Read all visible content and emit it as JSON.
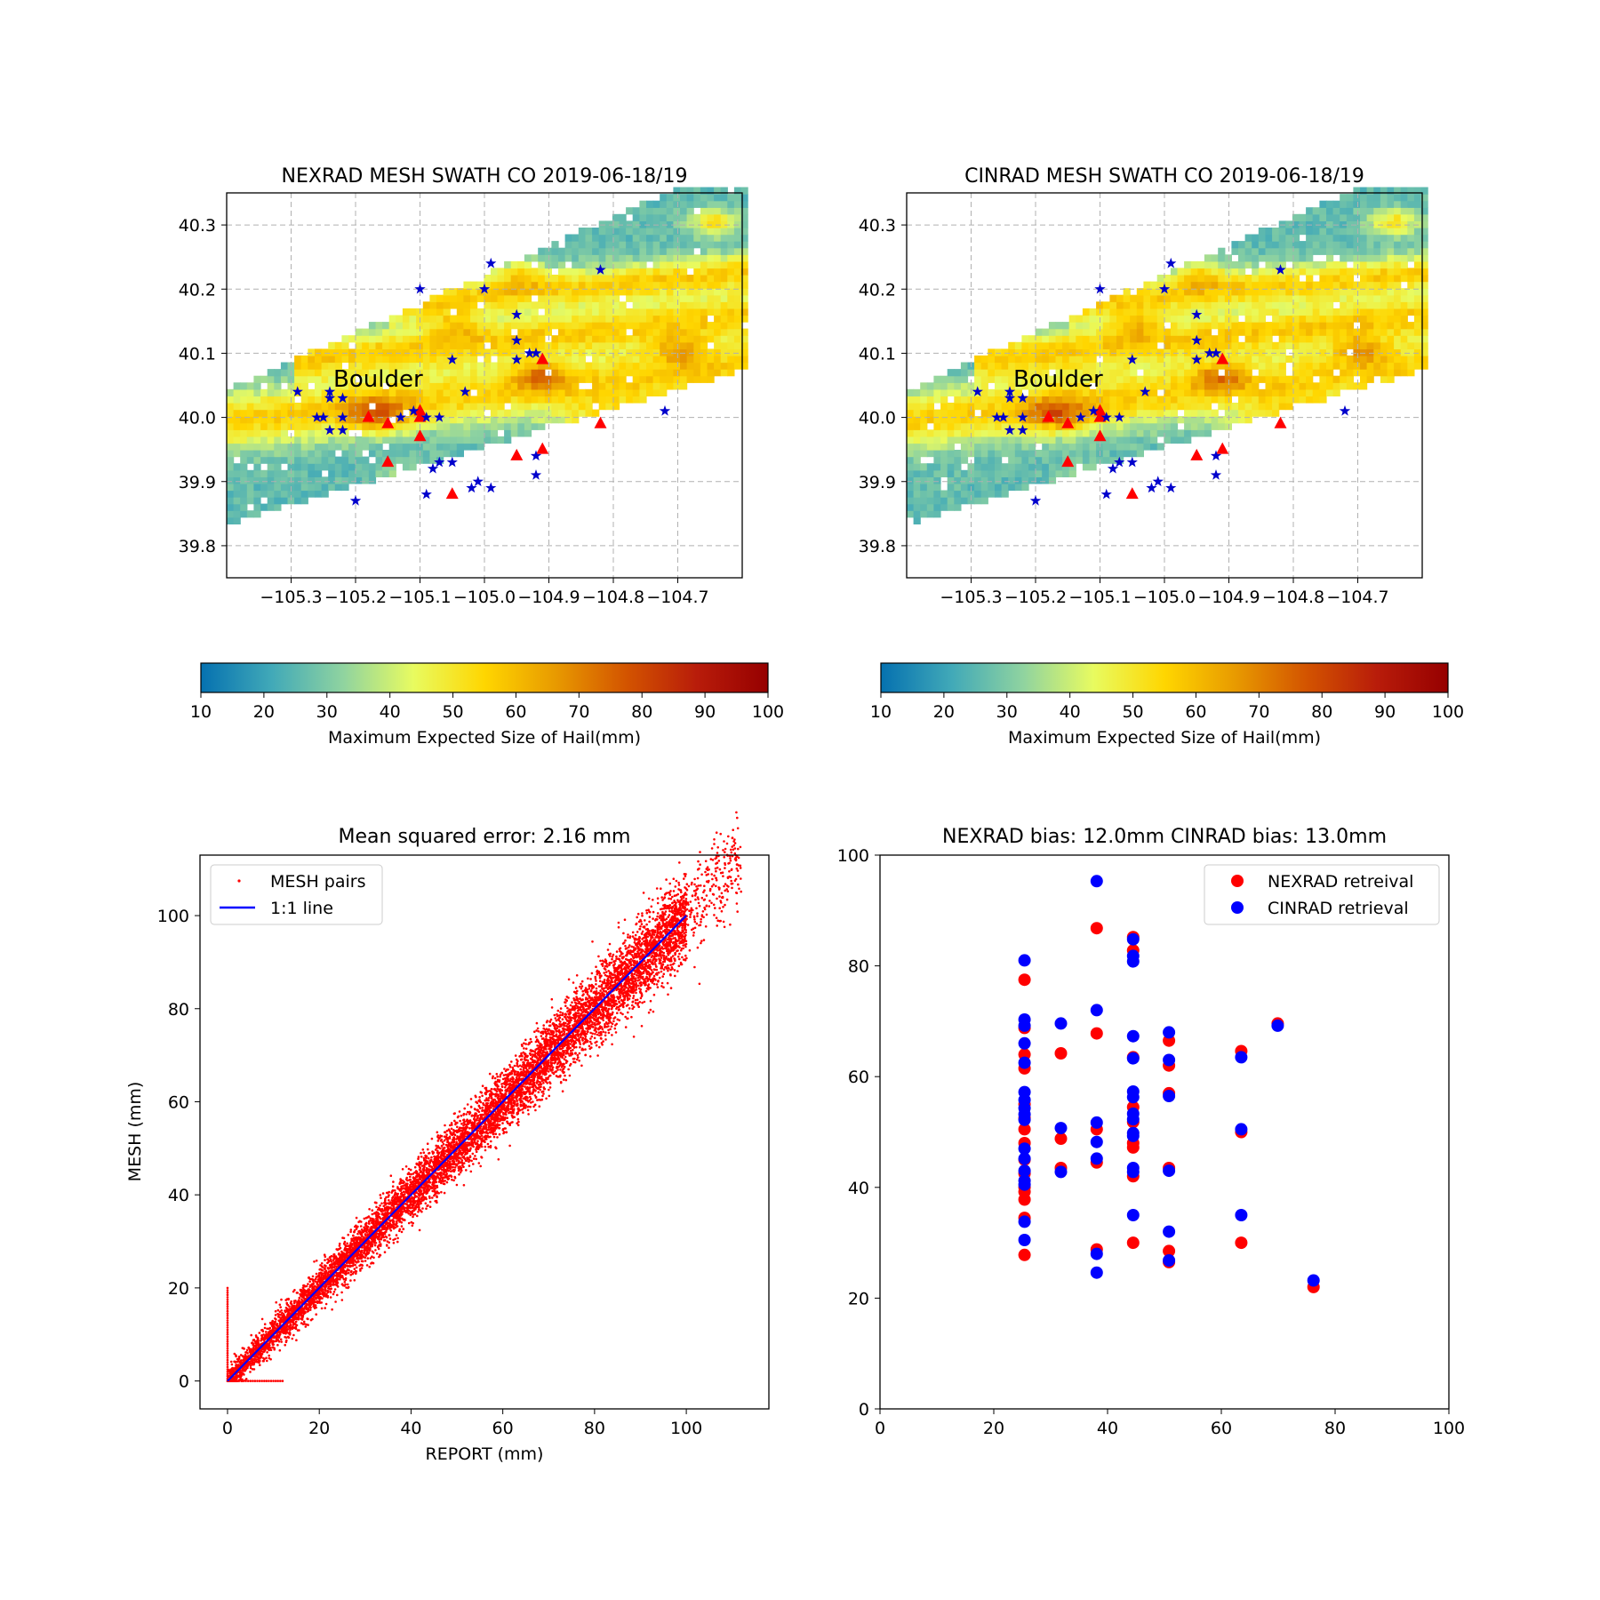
{
  "colors": {
    "report_triangle": "#ff0000",
    "report_star": "#0000cc",
    "nexrad_point": "#ff0000",
    "cinrad_point": "#0000ff",
    "mesh_pairs": "#ff0000",
    "one_to_one_line": "#0000ff",
    "colormap": [
      "#0571b0",
      "#41a9b8",
      "#8fd3a0",
      "#e8fb60",
      "#ffd600",
      "#e89a00",
      "#d35400",
      "#b81c0a",
      "#960000"
    ]
  },
  "chart_data": [
    {
      "id": "nexrad_map",
      "type": "heatmap",
      "title": "NEXRAD MESH SWATH CO 2019-06-18/19",
      "xlabel": "",
      "ylabel": "",
      "xlim": [
        -105.4,
        -104.6
      ],
      "ylim": [
        39.75,
        40.35
      ],
      "xticks": [
        -105.3,
        -105.2,
        -105.1,
        -105.0,
        -104.9,
        -104.8,
        -104.7
      ],
      "xtick_labels": [
        "−105.3",
        "−105.2",
        "−105.1",
        "−105.0",
        "−104.9",
        "−104.8",
        "−104.7"
      ],
      "yticks": [
        39.8,
        39.9,
        40.0,
        40.1,
        40.2,
        40.3
      ],
      "ytick_labels": [
        "39.8",
        "39.9",
        "40.0",
        "40.1",
        "40.2",
        "40.3"
      ],
      "grid": true,
      "annotation": {
        "text": "Boulder",
        "lon": -105.23,
        "lat": 40.06
      },
      "colorbar": {
        "label": "Maximum Expected Size of Hail(mm)",
        "min": 10,
        "max": 100,
        "ticks": [
          10,
          20,
          30,
          40,
          50,
          60,
          70,
          80,
          90,
          100
        ]
      },
      "stars": [
        [
          -105.29,
          40.04
        ],
        [
          -105.24,
          40.04
        ],
        [
          -105.24,
          40.03
        ],
        [
          -105.22,
          40.03
        ],
        [
          -105.22,
          40.0
        ],
        [
          -105.26,
          40.0
        ],
        [
          -105.25,
          40.0
        ],
        [
          -105.24,
          39.98
        ],
        [
          -105.22,
          39.98
        ],
        [
          -105.13,
          40.0
        ],
        [
          -105.11,
          40.01
        ],
        [
          -105.09,
          40.0
        ],
        [
          -105.07,
          40.0
        ],
        [
          -105.1,
          40.2
        ],
        [
          -105.0,
          40.2
        ],
        [
          -104.99,
          40.24
        ],
        [
          -104.95,
          40.16
        ],
        [
          -104.95,
          40.12
        ],
        [
          -104.95,
          40.09
        ],
        [
          -104.93,
          40.1
        ],
        [
          -104.92,
          40.1
        ],
        [
          -105.05,
          40.09
        ],
        [
          -105.03,
          40.04
        ],
        [
          -105.08,
          39.92
        ],
        [
          -105.07,
          39.93
        ],
        [
          -105.05,
          39.93
        ],
        [
          -105.09,
          39.88
        ],
        [
          -105.02,
          39.89
        ],
        [
          -105.01,
          39.9
        ],
        [
          -104.99,
          39.89
        ],
        [
          -105.2,
          39.87
        ],
        [
          -104.92,
          39.91
        ],
        [
          -104.92,
          39.94
        ],
        [
          -104.72,
          40.01
        ],
        [
          -104.82,
          40.23
        ]
      ],
      "triangles": [
        [
          -105.18,
          40.0
        ],
        [
          -105.15,
          39.99
        ],
        [
          -105.1,
          40.0
        ],
        [
          -105.1,
          40.01
        ],
        [
          -105.1,
          39.97
        ],
        [
          -105.15,
          39.93
        ],
        [
          -105.05,
          39.88
        ],
        [
          -104.95,
          39.94
        ],
        [
          -104.91,
          39.95
        ],
        [
          -104.82,
          39.99
        ],
        [
          -104.91,
          40.09
        ]
      ]
    },
    {
      "id": "cinrad_map",
      "type": "heatmap",
      "title": "CINRAD MESH SWATH CO 2019-06-18/19",
      "xlabel": "",
      "ylabel": "",
      "xlim": [
        -105.4,
        -104.6
      ],
      "ylim": [
        39.75,
        40.35
      ],
      "xticks": [
        -105.3,
        -105.2,
        -105.1,
        -105.0,
        -104.9,
        -104.8,
        -104.7
      ],
      "xtick_labels": [
        "−105.3",
        "−105.2",
        "−105.1",
        "−105.0",
        "−104.9",
        "−104.8",
        "−104.7"
      ],
      "yticks": [
        39.8,
        39.9,
        40.0,
        40.1,
        40.2,
        40.3
      ],
      "ytick_labels": [
        "39.8",
        "39.9",
        "40.0",
        "40.1",
        "40.2",
        "40.3"
      ],
      "grid": true,
      "annotation": {
        "text": "Boulder",
        "lon": -105.23,
        "lat": 40.06
      },
      "colorbar": {
        "label": "Maximum Expected Size of Hail(mm)",
        "min": 10,
        "max": 100,
        "ticks": [
          10,
          20,
          30,
          40,
          50,
          60,
          70,
          80,
          90,
          100
        ]
      },
      "stars": [
        [
          -105.29,
          40.04
        ],
        [
          -105.24,
          40.04
        ],
        [
          -105.24,
          40.03
        ],
        [
          -105.22,
          40.03
        ],
        [
          -105.22,
          40.0
        ],
        [
          -105.26,
          40.0
        ],
        [
          -105.25,
          40.0
        ],
        [
          -105.24,
          39.98
        ],
        [
          -105.22,
          39.98
        ],
        [
          -105.13,
          40.0
        ],
        [
          -105.11,
          40.01
        ],
        [
          -105.09,
          40.0
        ],
        [
          -105.07,
          40.0
        ],
        [
          -105.1,
          40.2
        ],
        [
          -105.0,
          40.2
        ],
        [
          -104.99,
          40.24
        ],
        [
          -104.95,
          40.16
        ],
        [
          -104.95,
          40.12
        ],
        [
          -104.95,
          40.09
        ],
        [
          -104.93,
          40.1
        ],
        [
          -104.92,
          40.1
        ],
        [
          -105.05,
          40.09
        ],
        [
          -105.03,
          40.04
        ],
        [
          -105.08,
          39.92
        ],
        [
          -105.07,
          39.93
        ],
        [
          -105.05,
          39.93
        ],
        [
          -105.09,
          39.88
        ],
        [
          -105.02,
          39.89
        ],
        [
          -105.01,
          39.9
        ],
        [
          -104.99,
          39.89
        ],
        [
          -105.2,
          39.87
        ],
        [
          -104.92,
          39.91
        ],
        [
          -104.92,
          39.94
        ],
        [
          -104.72,
          40.01
        ],
        [
          -104.82,
          40.23
        ]
      ],
      "triangles": [
        [
          -105.18,
          40.0
        ],
        [
          -105.15,
          39.99
        ],
        [
          -105.1,
          40.0
        ],
        [
          -105.1,
          40.01
        ],
        [
          -105.1,
          39.97
        ],
        [
          -105.15,
          39.93
        ],
        [
          -105.05,
          39.88
        ],
        [
          -104.95,
          39.94
        ],
        [
          -104.91,
          39.95
        ],
        [
          -104.82,
          39.99
        ],
        [
          -104.91,
          40.09
        ]
      ]
    },
    {
      "id": "mse_scatter",
      "type": "scatter",
      "title": "Mean squared error: 2.16 mm",
      "xlabel": "REPORT (mm)",
      "ylabel": "MESH (mm)",
      "xlim": [
        -6,
        118
      ],
      "ylim": [
        -6,
        113
      ],
      "xticks": [
        0,
        20,
        40,
        60,
        80,
        100
      ],
      "yticks": [
        0,
        20,
        40,
        60,
        80,
        100
      ],
      "legend": {
        "position": "top-left",
        "entries": [
          "MESH pairs",
          "1:1 line"
        ]
      },
      "series": [
        {
          "name": "MESH pairs",
          "note_points": "dense cloud of pairs around y = x from 0 to ~112 mm with spread about 3-6 mm",
          "x_range": [
            0,
            112
          ],
          "y_range": [
            0,
            110
          ]
        },
        {
          "name": "1:1 line",
          "x": [
            0,
            100
          ],
          "y": [
            0,
            100
          ]
        }
      ]
    },
    {
      "id": "bias_scatter",
      "type": "scatter",
      "title": "NEXRAD bias: 12.0mm CINRAD bias: 13.0mm",
      "xlabel": "",
      "ylabel": "",
      "xlim": [
        0,
        100
      ],
      "ylim": [
        0,
        100
      ],
      "xticks": [
        0,
        20,
        40,
        60,
        80,
        100
      ],
      "yticks": [
        0,
        20,
        40,
        60,
        80,
        100
      ],
      "legend": {
        "position": "top-right",
        "entries": [
          "NEXRAD retreival",
          "CINRAD retrieval"
        ]
      },
      "series": [
        {
          "name": "NEXRAD retreival",
          "points": [
            [
              25.4,
              77.5
            ],
            [
              25.4,
              68.8
            ],
            [
              25.4,
              64.0
            ],
            [
              25.4,
              61.5
            ],
            [
              25.4,
              55.0
            ],
            [
              25.4,
              52.5
            ],
            [
              25.4,
              50.5
            ],
            [
              25.4,
              48.0
            ],
            [
              25.4,
              45.0
            ],
            [
              25.4,
              42.5
            ],
            [
              25.4,
              40.0
            ],
            [
              25.4,
              39.2
            ],
            [
              25.4,
              37.8
            ],
            [
              25.4,
              34.5
            ],
            [
              25.4,
              27.8
            ],
            [
              31.8,
              64.2
            ],
            [
              31.8,
              48.8
            ],
            [
              31.8,
              43.5
            ],
            [
              38.1,
              86.8
            ],
            [
              38.1,
              67.8
            ],
            [
              38.1,
              50.5
            ],
            [
              38.1,
              44.5
            ],
            [
              38.1,
              28.8
            ],
            [
              44.5,
              85.2
            ],
            [
              44.5,
              82.8
            ],
            [
              44.5,
              63.5
            ],
            [
              44.5,
              54.5
            ],
            [
              44.5,
              51.8
            ],
            [
              44.5,
              48.0
            ],
            [
              44.5,
              47.2
            ],
            [
              44.5,
              42.0
            ],
            [
              44.5,
              30.0
            ],
            [
              50.8,
              66.5
            ],
            [
              50.8,
              62.0
            ],
            [
              50.8,
              57.0
            ],
            [
              50.8,
              43.5
            ],
            [
              50.8,
              28.5
            ],
            [
              50.8,
              26.5
            ],
            [
              63.5,
              64.6
            ],
            [
              63.5,
              50.0
            ],
            [
              63.5,
              30.0
            ],
            [
              69.9,
              69.6
            ],
            [
              76.2,
              22.0
            ]
          ]
        },
        {
          "name": "CINRAD retrieval",
          "points": [
            [
              25.4,
              81.0
            ],
            [
              25.4,
              70.3
            ],
            [
              25.4,
              69.2
            ],
            [
              25.4,
              66.0
            ],
            [
              25.4,
              62.5
            ],
            [
              25.4,
              57.2
            ],
            [
              25.4,
              55.8
            ],
            [
              25.4,
              54.3
            ],
            [
              25.4,
              53.2
            ],
            [
              25.4,
              52.2
            ],
            [
              25.4,
              47.0
            ],
            [
              25.4,
              45.2
            ],
            [
              25.4,
              43.0
            ],
            [
              25.4,
              41.2
            ],
            [
              25.4,
              40.5
            ],
            [
              25.4,
              33.8
            ],
            [
              25.4,
              30.5
            ],
            [
              31.8,
              69.6
            ],
            [
              31.8,
              50.7
            ],
            [
              31.8,
              42.8
            ],
            [
              38.1,
              95.3
            ],
            [
              38.1,
              72.0
            ],
            [
              38.1,
              51.7
            ],
            [
              38.1,
              48.2
            ],
            [
              38.1,
              45.2
            ],
            [
              38.1,
              28.0
            ],
            [
              38.1,
              24.6
            ],
            [
              44.5,
              84.8
            ],
            [
              44.5,
              81.8
            ],
            [
              44.5,
              80.8
            ],
            [
              44.5,
              67.3
            ],
            [
              44.5,
              63.3
            ],
            [
              44.5,
              57.3
            ],
            [
              44.5,
              56.3
            ],
            [
              44.5,
              53.3
            ],
            [
              44.5,
              52.3
            ],
            [
              44.5,
              49.8
            ],
            [
              44.5,
              49.3
            ],
            [
              44.5,
              43.5
            ],
            [
              44.5,
              42.8
            ],
            [
              44.5,
              35.0
            ],
            [
              50.8,
              68.0
            ],
            [
              50.8,
              63.0
            ],
            [
              50.8,
              56.5
            ],
            [
              50.8,
              43.0
            ],
            [
              50.8,
              32.0
            ],
            [
              50.8,
              26.8
            ],
            [
              63.5,
              63.5
            ],
            [
              63.5,
              50.5
            ],
            [
              63.5,
              35.0
            ],
            [
              69.9,
              69.2
            ],
            [
              76.2,
              23.2
            ]
          ]
        }
      ]
    }
  ]
}
